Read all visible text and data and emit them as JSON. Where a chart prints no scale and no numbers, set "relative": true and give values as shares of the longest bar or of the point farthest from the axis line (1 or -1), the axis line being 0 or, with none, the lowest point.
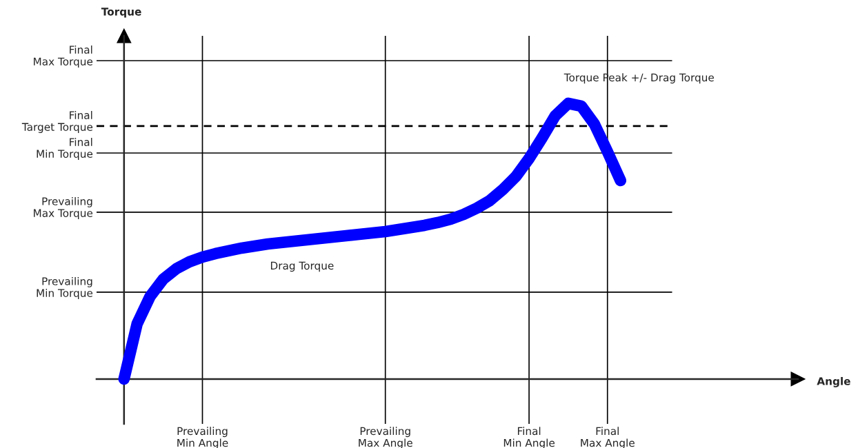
{
  "chart_data": {
    "type": "line",
    "relative": true,
    "tick_labels": "x",
    "grid": "x",
    "marker": "none",
    "line_style": "solid",
    "categories": [
      null,
      null,
      null,
      null,
      null,
      null,
      "Prevailing\nMin Angle",
      null,
      null,
      null,
      null,
      null,
      null,
      null,
      null,
      null,
      null,
      null,
      null,
      null,
      "Prevailing\nMax Angle",
      null,
      null,
      null,
      null,
      null,
      null,
      null,
      null,
      null,
      null,
      "Final\nMin Angle",
      null,
      null,
      null,
      null,
      null,
      "Final\nMax Angle",
      null
    ],
    "series": [
      {
        "color": "#0000ff",
        "values": [
          0,
          0.2,
          0.3,
          0.3625,
          0.4,
          0.425,
          0.4425,
          0.455,
          0.465,
          0.475,
          0.4825,
          0.49,
          0.495,
          0.5,
          0.505,
          0.51,
          0.515,
          0.52,
          0.525,
          0.53,
          0.535,
          0.5425,
          0.55,
          0.5575,
          0.5675,
          0.58,
          0.5975,
          0.62,
          0.6475,
          0.6875,
          0.735,
          0.8,
          0.875,
          0.955,
          1,
          0.99,
          0.925,
          0.825,
          0.72
        ]
      }
    ],
    "ref_lines": [
      {
        "axis": "y",
        "value": 1.155,
        "label": "Final\nMax Torque",
        "line_style": "solid",
        "color": "#000000"
      },
      {
        "axis": "y",
        "value": 0.9175,
        "label": "Final\nTarget Torque",
        "line_style": "dashed",
        "color": "#000000"
      },
      {
        "axis": "y",
        "value": 0.82,
        "label": "Final\nMin Torque",
        "line_style": "solid",
        "color": "#000000"
      },
      {
        "axis": "y",
        "value": 0.605,
        "label": "Prevailing\nMax Torque",
        "line_style": "solid",
        "color": "#000000"
      },
      {
        "axis": "y",
        "value": 0.315,
        "label": "Prevailing\nMin Torque",
        "line_style": "solid",
        "color": "#000000"
      }
    ],
    "annotations": [
      "Torque",
      "Angle",
      "Torque Peak +/- Drag Torque",
      "Drag Torque"
    ]
  }
}
